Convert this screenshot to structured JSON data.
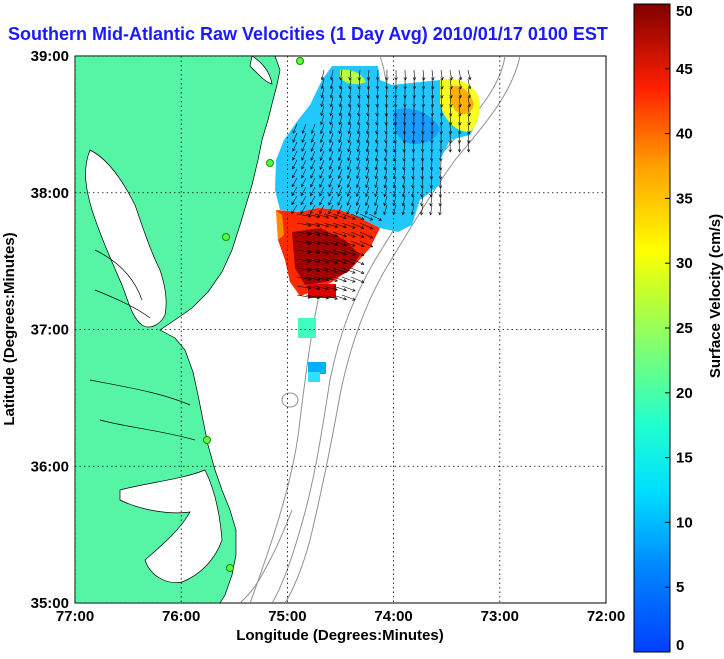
{
  "title": "Southern Mid-Atlantic Raw Velocities (1 Day Avg) 2010/01/17 0100 EST",
  "map": {
    "xlabel": "Longitude (Degrees:Minutes)",
    "ylabel": "Latitude (Degrees:Minutes)",
    "x_ticks": [
      "77:00",
      "76:00",
      "75:00",
      "74:00",
      "73:00",
      "72:00"
    ],
    "y_ticks": [
      "39:00",
      "38:00",
      "37:00",
      "36:00",
      "35:00"
    ],
    "lon_range": [
      -77,
      -72
    ],
    "lat_range": [
      35,
      39
    ],
    "grid": "dotted",
    "land_color": "#55f5a5",
    "bathymetry_color": "#909090"
  },
  "colorbar": {
    "label": "Surface Velocity (cm/s)",
    "ticks": [
      "0",
      "5",
      "10",
      "15",
      "20",
      "25",
      "30",
      "35",
      "40",
      "45",
      "50"
    ],
    "range": [
      0,
      50
    ],
    "colormap": "jet"
  },
  "legend_icons": {
    "radar_site": "radar-site-icon",
    "current_vector": "current-vector-icon"
  }
}
